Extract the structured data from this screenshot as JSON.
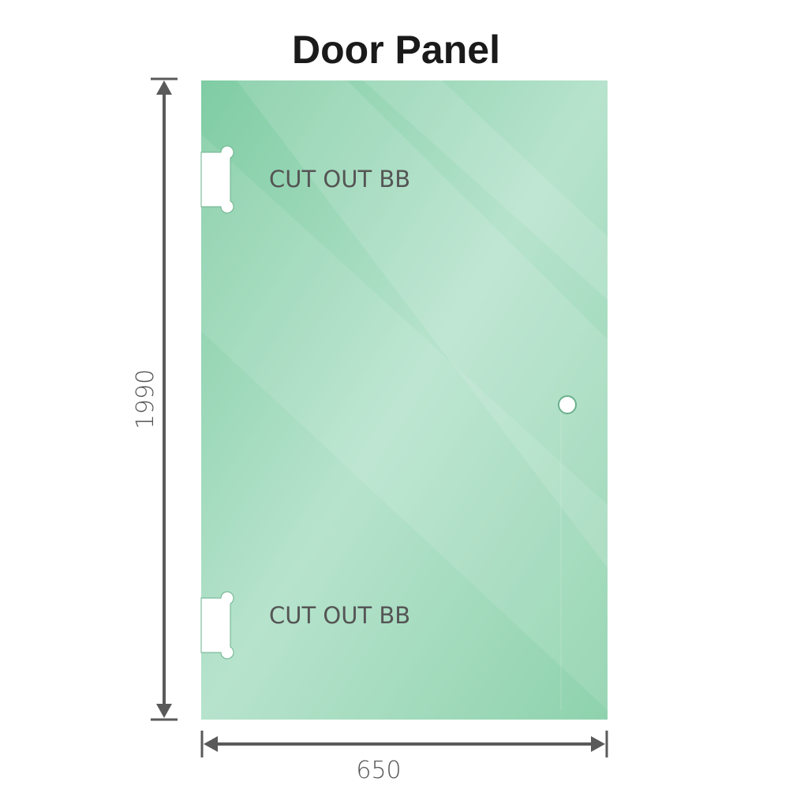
{
  "title": "Door Panel",
  "cutouts": [
    {
      "label": "CUT OUT BB"
    },
    {
      "label": "CUT OUT BB"
    }
  ],
  "dimensions": {
    "height": "1990",
    "width": "650"
  },
  "colors": {
    "glass": "#86cfa8",
    "glass_light": "#b9e4cf",
    "dimension_line": "#5a5a5a"
  }
}
